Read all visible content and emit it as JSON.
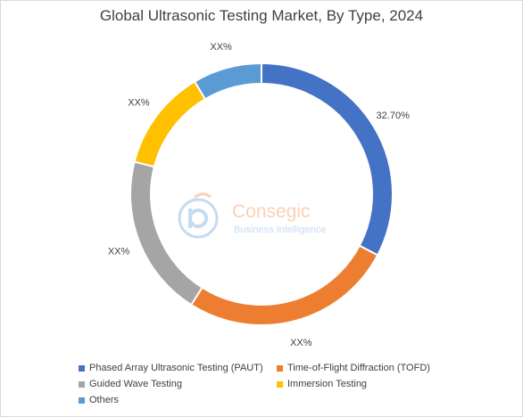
{
  "chart_data": {
    "type": "pie",
    "variant": "donut",
    "title": "Global Ultrasonic Testing Market, By Type, 2024",
    "categories": [
      "Phased Array Ultrasonic Testing (PAUT)",
      "Time-of-Flight Diffraction (TOFD)",
      "Guided Wave Testing",
      "Immersion Testing",
      "Others"
    ],
    "values": [
      32.7,
      26.3,
      20.0,
      12.5,
      8.5
    ],
    "data_labels": [
      "32.70%",
      "XX%",
      "XX%",
      "XX%",
      "XX%"
    ],
    "colors": [
      "#4472C4",
      "#ED7D31",
      "#A5A5A5",
      "#FFC000",
      "#5B9BD5"
    ],
    "legend_position": "bottom"
  },
  "watermark": {
    "brand": "Consegic",
    "tagline": "Business Intelligence"
  }
}
